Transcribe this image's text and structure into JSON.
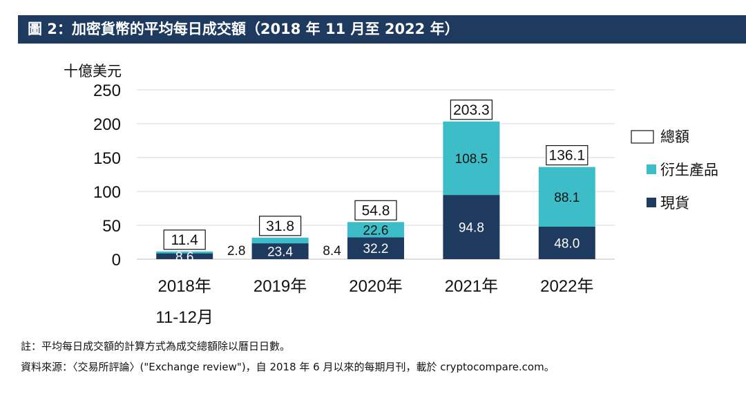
{
  "title": "圖 2：加密貨幣的平均每日成交額（2018 年 11 月至 2022 年）",
  "colors": {
    "title_bg": "#1f3a5f",
    "spot": "#1f3a5f",
    "derivatives": "#3dbdc8",
    "total_box": "#ffffff"
  },
  "chart_data": {
    "type": "bar",
    "stacked": true,
    "ylabel": "十億美元",
    "ylim": [
      0,
      250
    ],
    "yticks": [
      0,
      50,
      100,
      150,
      200,
      250
    ],
    "categories": [
      [
        "2018年",
        "11-12月"
      ],
      [
        "2019年"
      ],
      [
        "2020年"
      ],
      [
        "2021年"
      ],
      [
        "2022年"
      ]
    ],
    "series": [
      {
        "name": "現貨",
        "key": "spot",
        "values": [
          8.6,
          23.4,
          32.2,
          94.8,
          48.0
        ],
        "labels": [
          "8.6",
          "23.4",
          "32.2",
          "94.8",
          "48.0"
        ]
      },
      {
        "name": "衍生產品",
        "key": "derivatives",
        "values": [
          2.8,
          8.4,
          22.6,
          108.5,
          88.1
        ],
        "labels": [
          "2.8",
          "8.4",
          "22.6",
          "108.5",
          "88.1"
        ]
      }
    ],
    "totals": [
      11.4,
      31.8,
      54.8,
      203.3,
      136.1
    ],
    "total_labels": [
      "11.4",
      "31.8",
      "54.8",
      "203.3",
      "136.1"
    ],
    "legend": [
      {
        "name": "總額",
        "key": "total"
      },
      {
        "name": "衍生產品",
        "key": "derivatives"
      },
      {
        "name": "現貨",
        "key": "spot"
      }
    ],
    "legend_position": "right"
  },
  "notes": {
    "note": "註：平均每日成交額的計算方式為成交總額除以曆日日數。",
    "source": "資料來源：〈交易所評論〉(\"Exchange review\")，自 2018 年 6 月以來的每期月刊，載於 cryptocompare.com。"
  }
}
